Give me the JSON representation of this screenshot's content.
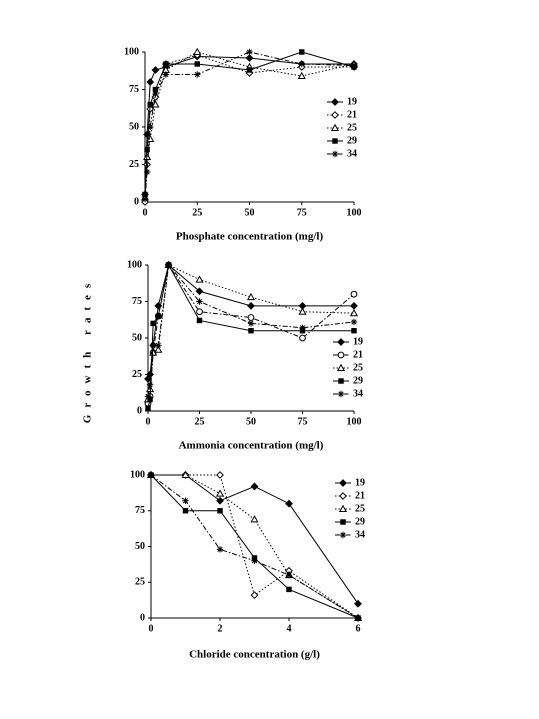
{
  "chart_data": [
    {
      "type": "line",
      "x_label": "Phosphate concentration (mg/l)",
      "x": [
        0,
        1,
        2.5,
        5,
        10,
        25,
        50,
        75,
        100
      ],
      "xlim": [
        0,
        100
      ],
      "xticks": [
        0,
        25,
        50,
        75,
        100
      ],
      "ylim": [
        0,
        100
      ],
      "yticks": [
        0,
        25,
        50,
        75,
        100
      ],
      "series": [
        {
          "name": "19",
          "color": "#000000",
          "marker": "diamond-filled",
          "dash": "solid",
          "values": [
            5,
            45,
            80,
            88,
            90,
            97,
            96,
            92,
            92
          ]
        },
        {
          "name": "21",
          "color": "#000000",
          "marker": "diamond-open",
          "dash": "dot",
          "values": [
            0,
            25,
            62,
            70,
            92,
            98,
            86,
            90,
            90
          ]
        },
        {
          "name": "25",
          "color": "#000000",
          "marker": "triangle-open",
          "dash": "dot",
          "values": [
            3,
            30,
            42,
            65,
            88,
            100,
            90,
            84,
            92
          ]
        },
        {
          "name": "29",
          "color": "#000000",
          "marker": "square-filled",
          "dash": "solid",
          "values": [
            5,
            35,
            65,
            75,
            92,
            92,
            88,
            100,
            90
          ]
        },
        {
          "name": "34",
          "color": "#000000",
          "marker": "asterisk",
          "dash": "dashdot",
          "values": [
            2,
            20,
            50,
            72,
            85,
            85,
            100,
            92,
            91
          ]
        }
      ]
    },
    {
      "type": "line",
      "x_label": "Ammonia concentration (mg/l)",
      "y_label": "Growth rates",
      "x": [
        0,
        1,
        2.5,
        5,
        10,
        25,
        50,
        75,
        100
      ],
      "xlim": [
        0,
        100
      ],
      "xticks": [
        0,
        25,
        50,
        75,
        100
      ],
      "ylim": [
        0,
        100
      ],
      "yticks": [
        0,
        25,
        50,
        75,
        100
      ],
      "series": [
        {
          "name": "19",
          "color": "#000000",
          "marker": "diamond-filled",
          "dash": "solid",
          "values": [
            22,
            25,
            45,
            72,
            100,
            82,
            72,
            72,
            72
          ]
        },
        {
          "name": "21",
          "color": "#000000",
          "marker": "circle-open",
          "dash": "dashdot",
          "values": [
            5,
            10,
            40,
            65,
            100,
            68,
            64,
            50,
            80
          ]
        },
        {
          "name": "25",
          "color": "#000000",
          "marker": "triangle-open",
          "dash": "dot",
          "values": [
            8,
            15,
            40,
            42,
            100,
            90,
            78,
            68,
            67
          ]
        },
        {
          "name": "29",
          "color": "#000000",
          "marker": "square-filled",
          "dash": "solid",
          "values": [
            2,
            8,
            60,
            65,
            100,
            62,
            55,
            55,
            55
          ]
        },
        {
          "name": "34",
          "color": "#000000",
          "marker": "asterisk",
          "dash": "dashdot",
          "values": [
            10,
            18,
            45,
            45,
            100,
            75,
            60,
            57,
            61
          ]
        }
      ]
    },
    {
      "type": "line",
      "x_label": "Chloride concentration (g/l)",
      "x": [
        0,
        1,
        2,
        3,
        4,
        6
      ],
      "xlim": [
        0,
        6
      ],
      "xticks": [
        0,
        2,
        4,
        6
      ],
      "ylim": [
        0,
        100
      ],
      "yticks": [
        0,
        25,
        50,
        75,
        100
      ],
      "series": [
        {
          "name": "19",
          "color": "#000000",
          "marker": "diamond-filled",
          "dash": "solid",
          "values": [
            100,
            100,
            82,
            92,
            80,
            10
          ]
        },
        {
          "name": "21",
          "color": "#000000",
          "marker": "diamond-open",
          "dash": "dot",
          "values": [
            100,
            100,
            100,
            16,
            33,
            0
          ]
        },
        {
          "name": "25",
          "color": "#000000",
          "marker": "triangle-open",
          "dash": "dot",
          "values": [
            100,
            100,
            87,
            69,
            30,
            0
          ]
        },
        {
          "name": "29",
          "color": "#000000",
          "marker": "square-filled",
          "dash": "solid",
          "values": [
            100,
            75,
            75,
            42,
            20,
            0
          ]
        },
        {
          "name": "34",
          "color": "#000000",
          "marker": "asterisk",
          "dash": "dashdot",
          "values": [
            100,
            82,
            48,
            40,
            30,
            0
          ]
        }
      ]
    }
  ]
}
